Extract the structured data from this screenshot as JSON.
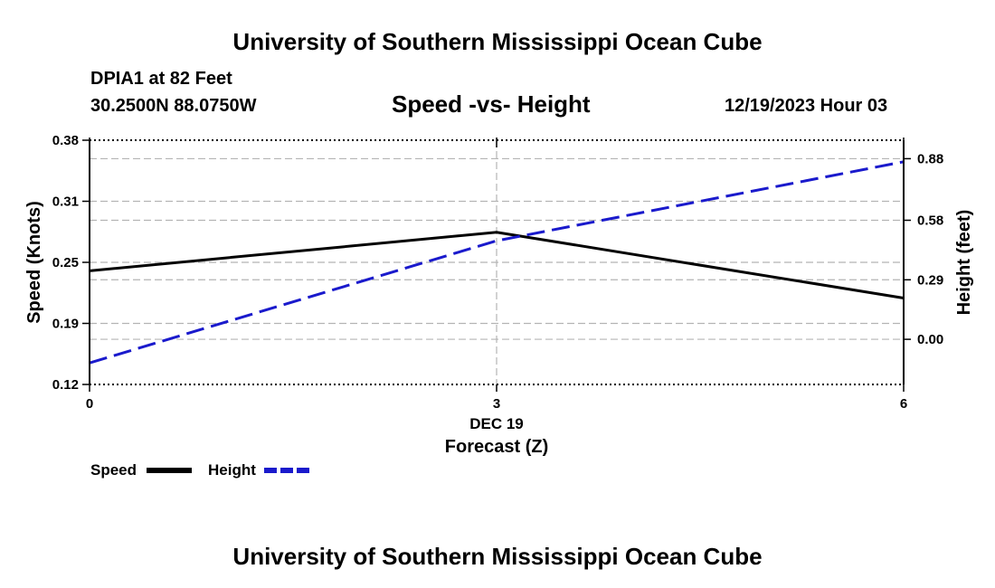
{
  "header": {
    "title": "University of Southern Mississippi Ocean Cube",
    "station": "DPIA1 at 82 Feet",
    "coords": "30.2500N  88.0750W",
    "subtitle": "Speed -vs- Height",
    "datetime": "12/19/2023 Hour 03"
  },
  "footer": {
    "title": "University of Southern Mississippi Ocean Cube"
  },
  "legend": {
    "speed_label": "Speed",
    "height_label": "Height"
  },
  "colors": {
    "speed": "#000000",
    "height": "#1a1acc",
    "grid": "#b4b4b4"
  },
  "chart_data": {
    "type": "line",
    "title": "Speed -vs- Height",
    "xlabel": "Forecast (Z)",
    "xlabel_date": "DEC 19",
    "x": [
      0,
      3,
      6
    ],
    "xticks": [
      "0",
      "3",
      "6"
    ],
    "xlim": [
      0,
      6
    ],
    "y_left": {
      "label": "Speed (Knots)",
      "ticks": [
        "0.12",
        "0.19",
        "0.25",
        "0.31",
        "0.38"
      ],
      "tick_values": [
        0.12,
        0.185,
        0.25,
        0.315,
        0.38
      ],
      "lim": [
        0.12,
        0.38
      ]
    },
    "y_right": {
      "label": "Height (feet)",
      "ticks": [
        "0.00",
        "0.29",
        "0.58",
        "0.88"
      ],
      "tick_values": [
        0.0,
        0.29,
        0.58,
        0.88
      ],
      "lim": [
        -0.22,
        0.97
      ]
    },
    "series": [
      {
        "name": "Speed",
        "axis": "left",
        "style": "solid",
        "values": [
          0.241,
          0.282,
          0.212
        ]
      },
      {
        "name": "Height",
        "axis": "right",
        "style": "dashed",
        "values": [
          -0.115,
          0.48,
          0.865
        ]
      }
    ],
    "grid": true
  }
}
